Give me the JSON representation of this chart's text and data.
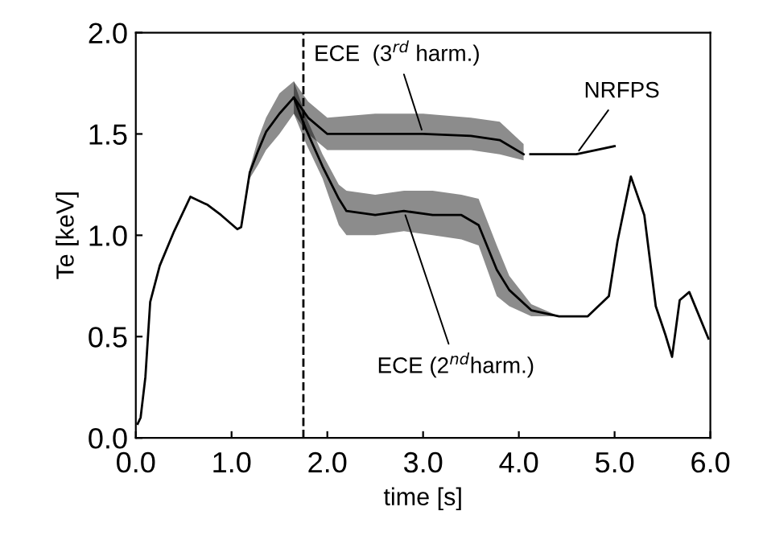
{
  "chart_data": {
    "type": "line",
    "xlabel": "time [s]",
    "ylabel": "Te [keV]",
    "xlim": [
      0,
      6
    ],
    "ylim": [
      0,
      2
    ],
    "xticks": [
      {
        "value": 0,
        "label": "0.0"
      },
      {
        "value": 1,
        "label": "1.0"
      },
      {
        "value": 2,
        "label": "2.0"
      },
      {
        "value": 3,
        "label": "3.0"
      },
      {
        "value": 4,
        "label": "4.0"
      },
      {
        "value": 5,
        "label": "5.0"
      },
      {
        "value": 6,
        "label": "6.0"
      }
    ],
    "yticks": [
      {
        "value": 0,
        "label": "0.0"
      },
      {
        "value": 0.5,
        "label": "0.5"
      },
      {
        "value": 1,
        "label": "1.0"
      },
      {
        "value": 1.5,
        "label": "1.5"
      },
      {
        "value": 2,
        "label": "2.0"
      }
    ],
    "series": [
      {
        "name": "ECE (2$^{nd}$harm.)",
        "color": "#000000",
        "x": [
          0.02,
          0.05,
          0.1,
          0.15,
          0.25,
          0.4,
          0.57,
          0.75,
          0.89,
          1.06,
          1.1,
          1.19,
          1.28,
          1.36,
          1.5,
          1.65,
          1.78,
          1.95,
          2.12,
          2.2,
          2.5,
          2.8,
          3.1,
          3.4,
          3.58,
          3.77,
          3.9,
          4.13,
          4.42,
          4.72,
          4.94,
          5.03,
          5.17,
          5.31,
          5.43,
          5.53,
          5.6,
          5.68,
          5.78,
          5.98
        ],
        "values": [
          0.07,
          0.1,
          0.3,
          0.67,
          0.85,
          1.02,
          1.19,
          1.15,
          1.1,
          1.03,
          1.04,
          1.31,
          1.42,
          1.51,
          1.6,
          1.68,
          1.52,
          1.34,
          1.18,
          1.12,
          1.1,
          1.12,
          1.1,
          1.1,
          1.05,
          0.83,
          0.73,
          0.63,
          0.6,
          0.6,
          0.7,
          0.97,
          1.29,
          1.1,
          0.65,
          0.51,
          0.4,
          0.68,
          0.72,
          0.49
        ],
        "lower": [
          0.07,
          0.1,
          0.3,
          0.67,
          0.85,
          1.02,
          1.19,
          1.15,
          1.1,
          1.03,
          1.04,
          1.28,
          1.35,
          1.42,
          1.5,
          1.6,
          1.45,
          1.28,
          1.05,
          1.0,
          1.0,
          1.02,
          1.0,
          0.98,
          0.95,
          0.7,
          0.65,
          0.6,
          0.6,
          0.6,
          0.7,
          0.97,
          1.29,
          1.1,
          0.65,
          0.51,
          0.4,
          0.68,
          0.72,
          0.49
        ],
        "upper": [
          0.07,
          0.1,
          0.3,
          0.67,
          0.85,
          1.02,
          1.19,
          1.15,
          1.1,
          1.03,
          1.04,
          1.33,
          1.48,
          1.58,
          1.7,
          1.76,
          1.58,
          1.4,
          1.25,
          1.22,
          1.2,
          1.22,
          1.22,
          1.2,
          1.18,
          0.95,
          0.8,
          0.66,
          0.6,
          0.6,
          0.7,
          0.97,
          1.29,
          1.1,
          0.65,
          0.51,
          0.4,
          0.68,
          0.72,
          0.49
        ]
      },
      {
        "name": "ECE  (3$^{rd}$ harm.)",
        "color": "#000000",
        "x": [
          1.65,
          1.8,
          2.0,
          2.5,
          3.0,
          3.5,
          3.8,
          4.05
        ],
        "values": [
          1.68,
          1.58,
          1.5,
          1.5,
          1.5,
          1.49,
          1.47,
          1.4
        ],
        "lower": [
          1.6,
          1.5,
          1.42,
          1.42,
          1.42,
          1.42,
          1.4,
          1.37
        ],
        "upper": [
          1.76,
          1.66,
          1.58,
          1.6,
          1.6,
          1.58,
          1.56,
          1.45
        ]
      },
      {
        "name": "NRFPS",
        "color": "#000000",
        "x": [
          4.12,
          4.3,
          4.6,
          4.8,
          5.0
        ],
        "values": [
          1.4,
          1.4,
          1.4,
          1.42,
          1.44
        ]
      }
    ],
    "ref_lines": [
      {
        "axis": "x",
        "value": 1.75,
        "color": "#000000",
        "line_style": "dashed"
      }
    ],
    "grid": false,
    "legend": false
  }
}
